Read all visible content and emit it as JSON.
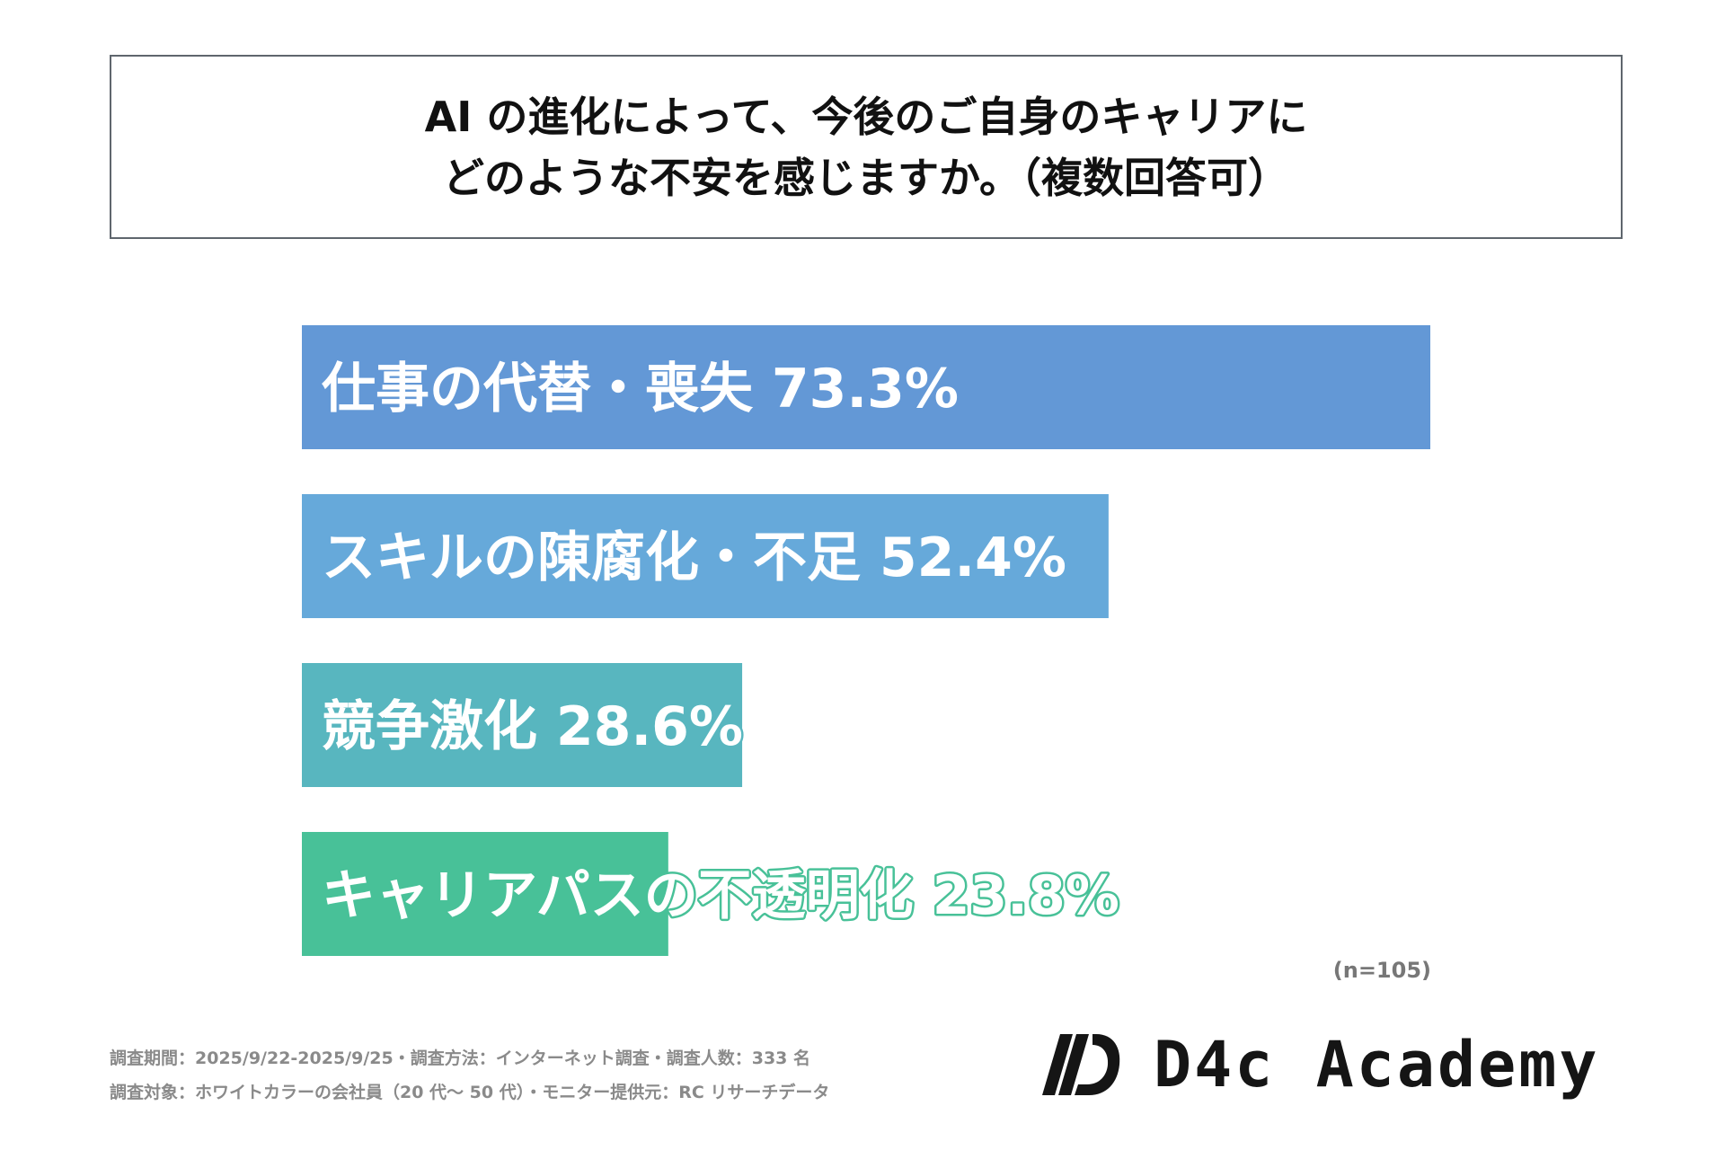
{
  "title": {
    "line1": "AI の進化によって、今後のご自身のキャリアに",
    "line2": "どのような不安を感じますか。（複数回答可）"
  },
  "chart_data": {
    "type": "bar",
    "orientation": "horizontal",
    "categories": [
      "仕事の代替・喪失",
      "スキルの陳腐化・不足",
      "競争激化",
      "キャリアパスの不透明化"
    ],
    "values": [
      73.3,
      52.4,
      28.6,
      23.8
    ],
    "value_labels": [
      "73.3%",
      "52.4%",
      "28.6%",
      "23.8%"
    ],
    "colors": [
      "#6398d6",
      "#66a9da",
      "#58b6bf",
      "#48c198"
    ],
    "xlim": [
      0,
      73.3
    ],
    "grid": false
  },
  "sample_note": "(n=105)",
  "footnotes": {
    "line1": "調査期間：2025/9/22-2025/9/25・調査方法：インターネット調査・調査人数：333 名",
    "line2": "調査対象：ホワイトカラーの会社員（20 代〜 50 代）・モニター提供元：RC リサーチデータ"
  },
  "logo": {
    "text": "D4c Academy",
    "icon": "d4c-logo-icon"
  }
}
